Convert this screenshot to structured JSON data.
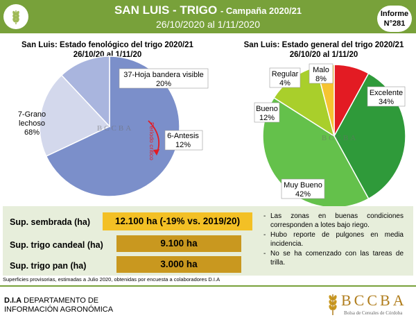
{
  "header": {
    "title": "SAN LUIS - TRIGO",
    "campaign": "- Campaña 2020/21",
    "dates": "26/10/2020 al 1/11/2020",
    "informe_line1": "Informe",
    "informe_line2": "N°281",
    "colors": {
      "bar": "#78a13a",
      "text": "#ffffff"
    }
  },
  "chart_data": [
    {
      "type": "pie",
      "title": "San Luis: Estado fenológico del trigo 2020/21",
      "subtitle": "26/10/20 al 1/11/20",
      "slices": [
        {
          "label": "7-Grano lechoso",
          "value": 68,
          "display": "68%",
          "color": "#7b8fca"
        },
        {
          "label": "37-Hoja bandera visible",
          "value": 20,
          "display": "20%",
          "color": "#d3d8ec"
        },
        {
          "label": "6-Antesis",
          "value": 12,
          "display": "12%",
          "color": "#a9b5de"
        }
      ],
      "annotation": "Período crítico",
      "watermark": "BCCBA"
    },
    {
      "type": "pie",
      "title": "San Luis: Estado general del trigo 2020/21",
      "subtitle": "26/10/20 al 1/11/20",
      "slices": [
        {
          "label": "Malo",
          "value": 8,
          "display": "8%",
          "color": "#e31b23"
        },
        {
          "label": "Excelente",
          "value": 34,
          "display": "34%",
          "color": "#2f9a3a"
        },
        {
          "label": "Muy Bueno",
          "value": 42,
          "display": "42%",
          "color": "#64c14b"
        },
        {
          "label": "Bueno",
          "value": 12,
          "display": "12%",
          "color": "#a9cf2b"
        },
        {
          "label": "Regular",
          "value": 4,
          "display": "4%",
          "color": "#f6c431"
        }
      ],
      "watermark": "BCCBA"
    }
  ],
  "summary": {
    "sembrada_label": "Sup. sembrada (ha)",
    "sembrada_value": "12.100 ha (-19% vs. 2019/20)",
    "candeal_label": "Sup. trigo candeal (ha)",
    "candeal_value": "9.100 ha",
    "pan_label": "Sup. trigo pan (ha)",
    "pan_value": "3.000 ha",
    "colors": {
      "panel": "#e7eedb",
      "highlight": "#f3c025",
      "bar": "#c9981f"
    }
  },
  "notes": [
    "Las zonas en buenas condiciones corresponden a lotes bajo riego.",
    "Hubo reporte de pulgones en media incidencia.",
    "No se ha comenzado con las tareas de trilla."
  ],
  "footnote": "Superficies provisorias, estimadas a Julio 2020, obtenidas por encuesta a colaboradores D.I.A",
  "footer": {
    "dept_bold": "D.I.A",
    "dept_line1": "DEPARTAMENTO DE",
    "dept_line2": "INFORMACIÓN AGRONÓMICA",
    "logo_text": "BCCBA",
    "logo_sub": "Bolsa de Cereales de Córdoba"
  }
}
